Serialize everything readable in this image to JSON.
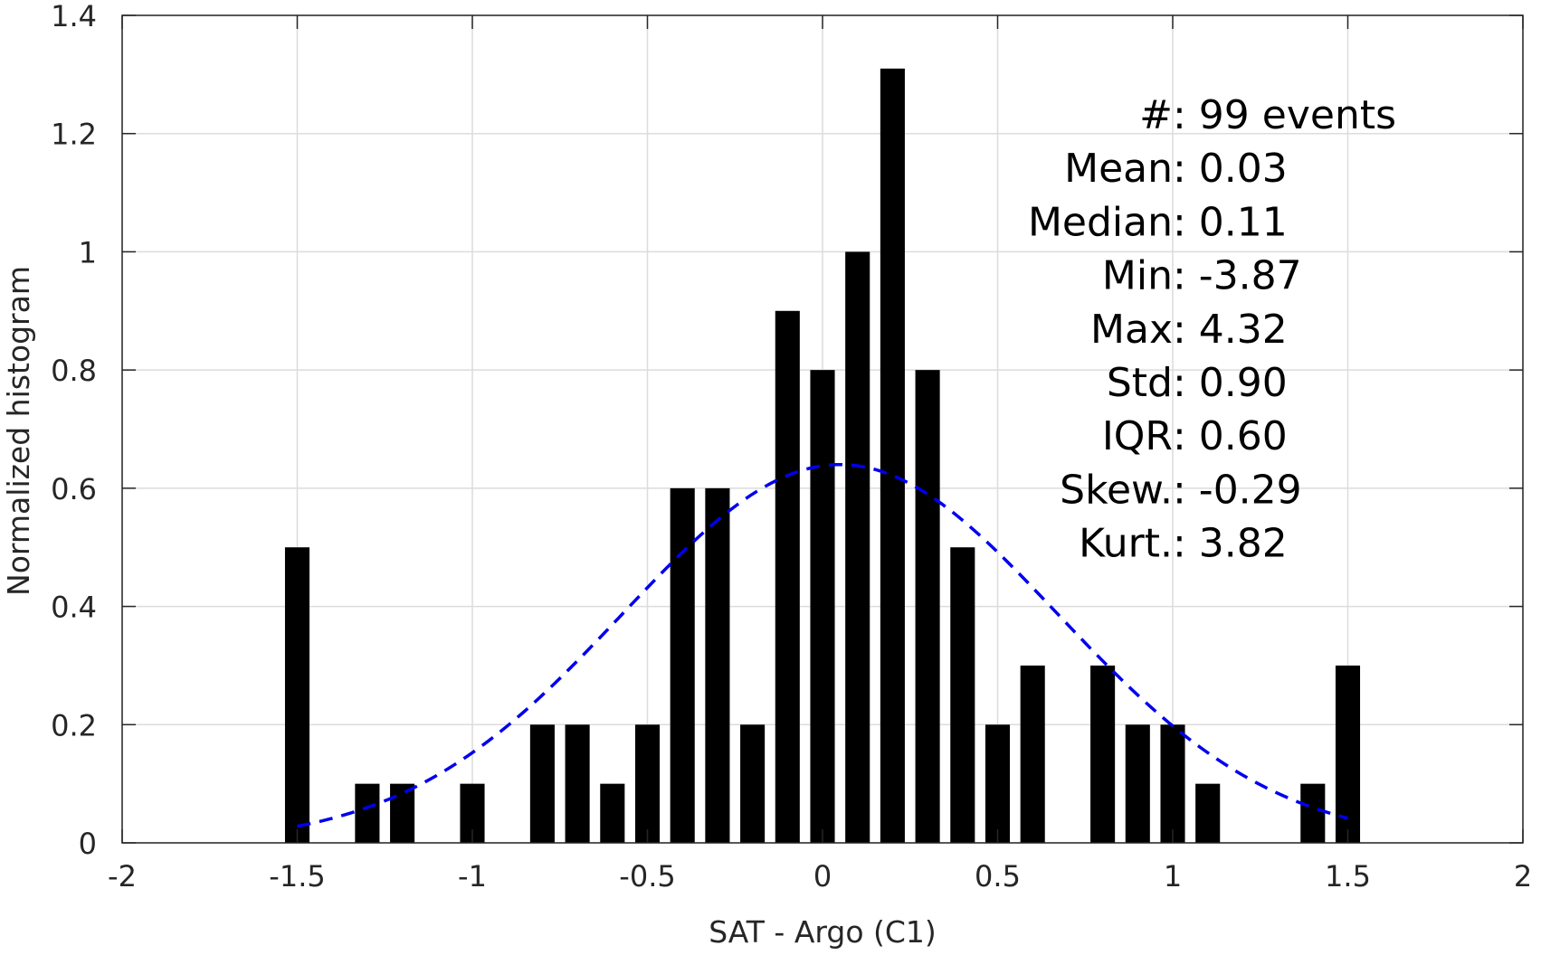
{
  "chart_data": {
    "type": "bar",
    "title": "",
    "xlabel": "SAT - Argo (C1)",
    "ylabel": "Normalized histogram",
    "xlim": [
      -2,
      2
    ],
    "ylim": [
      0,
      1.4
    ],
    "xticks": [
      -2,
      -1.5,
      -1,
      -0.5,
      0,
      0.5,
      1,
      1.5,
      2
    ],
    "xtick_labels": [
      "-2",
      "-1.5",
      "-1",
      "-0.5",
      "0",
      "0.5",
      "1",
      "1.5",
      "2"
    ],
    "yticks": [
      0,
      0.2,
      0.4,
      0.6,
      0.8,
      1,
      1.2,
      1.4
    ],
    "ytick_labels": [
      "0",
      "0.2",
      "0.4",
      "0.6",
      "0.8",
      "1",
      "1.2",
      "1.4"
    ],
    "grid": true,
    "bar_width": 0.07,
    "bars": [
      {
        "x": -1.5,
        "y": 0.5
      },
      {
        "x": -1.3,
        "y": 0.1
      },
      {
        "x": -1.2,
        "y": 0.1
      },
      {
        "x": -1.0,
        "y": 0.1
      },
      {
        "x": -0.8,
        "y": 0.2
      },
      {
        "x": -0.7,
        "y": 0.2
      },
      {
        "x": -0.6,
        "y": 0.1
      },
      {
        "x": -0.5,
        "y": 0.2
      },
      {
        "x": -0.4,
        "y": 0.6
      },
      {
        "x": -0.3,
        "y": 0.6
      },
      {
        "x": -0.2,
        "y": 0.2
      },
      {
        "x": -0.1,
        "y": 0.9
      },
      {
        "x": 0.0,
        "y": 0.8
      },
      {
        "x": 0.1,
        "y": 1.0
      },
      {
        "x": 0.2,
        "y": 1.31
      },
      {
        "x": 0.3,
        "y": 0.8
      },
      {
        "x": 0.4,
        "y": 0.5
      },
      {
        "x": 0.5,
        "y": 0.2
      },
      {
        "x": 0.6,
        "y": 0.3
      },
      {
        "x": 0.8,
        "y": 0.3
      },
      {
        "x": 0.9,
        "y": 0.2
      },
      {
        "x": 1.0,
        "y": 0.2
      },
      {
        "x": 1.1,
        "y": 0.1
      },
      {
        "x": 1.4,
        "y": 0.1
      },
      {
        "x": 1.5,
        "y": 0.3
      }
    ],
    "fit_curve": {
      "style": "dashed",
      "color": "#0000ee",
      "x_range": [
        -1.5,
        1.5
      ],
      "gaussian": {
        "mean": 0.05,
        "amplitude": 0.64,
        "sigma": 0.62
      }
    },
    "bar_color": "#000000",
    "stats": [
      {
        "label": "#  ",
        "value": ": 99 events"
      },
      {
        "label": "Mean ",
        "value": ": 0.03"
      },
      {
        "label": "Median ",
        "value": ": 0.11"
      },
      {
        "label": "Min ",
        "value": ": -3.87"
      },
      {
        "label": "Max ",
        "value": ": 4.32"
      },
      {
        "label": "Std ",
        "value": ": 0.90"
      },
      {
        "label": "IQR ",
        "value": ": 0.60"
      },
      {
        "label": "Skew. ",
        "value": ": -0.29"
      },
      {
        "label": "Kurt. ",
        "value": ": 3.82"
      }
    ]
  }
}
